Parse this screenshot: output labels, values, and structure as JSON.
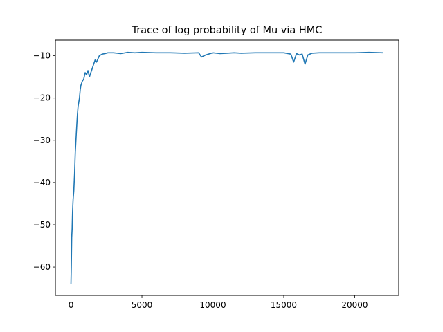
{
  "chart_data": {
    "type": "line",
    "title": "Trace of log probability of Mu via HMC",
    "xlabel": "",
    "ylabel": "",
    "xlim": [
      -1100,
      23100
    ],
    "ylim": [
      -66.7,
      -6.3
    ],
    "x_ticks": [
      0,
      5000,
      10000,
      15000,
      20000
    ],
    "y_ticks": [
      -60,
      -50,
      -40,
      -30,
      -20,
      -10
    ],
    "x_tick_labels": [
      "0",
      "5000",
      "10000",
      "15000",
      "20000"
    ],
    "y_tick_labels": [
      "−60",
      "−50",
      "−40",
      "−30",
      "−20",
      "−10"
    ],
    "grid": false,
    "legend": "none",
    "line_color": "#1f77b4",
    "series": [
      {
        "x": [
          0,
          20,
          50,
          80,
          110,
          150,
          200,
          250,
          300,
          350,
          400,
          450,
          500,
          550,
          600,
          650,
          700,
          800,
          900,
          1000,
          1100,
          1200,
          1300,
          1400,
          1500,
          1600,
          1700,
          1800,
          2000,
          2200,
          2400,
          2600,
          3000,
          3500,
          4000,
          4500,
          5000,
          6000,
          7000,
          8000,
          9000,
          9200,
          9500,
          10000,
          10500,
          11000,
          11500,
          12000,
          13000,
          14000,
          15000,
          15500,
          15700,
          15900,
          16100,
          16300,
          16500,
          16700,
          17000,
          17500,
          18000,
          19000,
          20000,
          21000,
          22000
        ],
        "y": [
          -64,
          -60,
          -53,
          -51,
          -47,
          -44,
          -42,
          -38,
          -33,
          -30,
          -27,
          -24,
          -22,
          -21,
          -20,
          -18,
          -17,
          -16,
          -15.5,
          -14,
          -14.5,
          -13.5,
          -15,
          -14,
          -13,
          -12,
          -11,
          -11.5,
          -10,
          -9.6,
          -9.5,
          -9.3,
          -9.3,
          -9.5,
          -9.2,
          -9.3,
          -9.2,
          -9.3,
          -9.3,
          -9.4,
          -9.3,
          -10.3,
          -9.8,
          -9.3,
          -9.5,
          -9.4,
          -9.3,
          -9.4,
          -9.3,
          -9.3,
          -9.3,
          -9.6,
          -11.5,
          -9.5,
          -9.8,
          -9.6,
          -12,
          -9.8,
          -9.4,
          -9.3,
          -9.3,
          -9.3,
          -9.3,
          -9.2,
          -9.3
        ]
      }
    ]
  }
}
